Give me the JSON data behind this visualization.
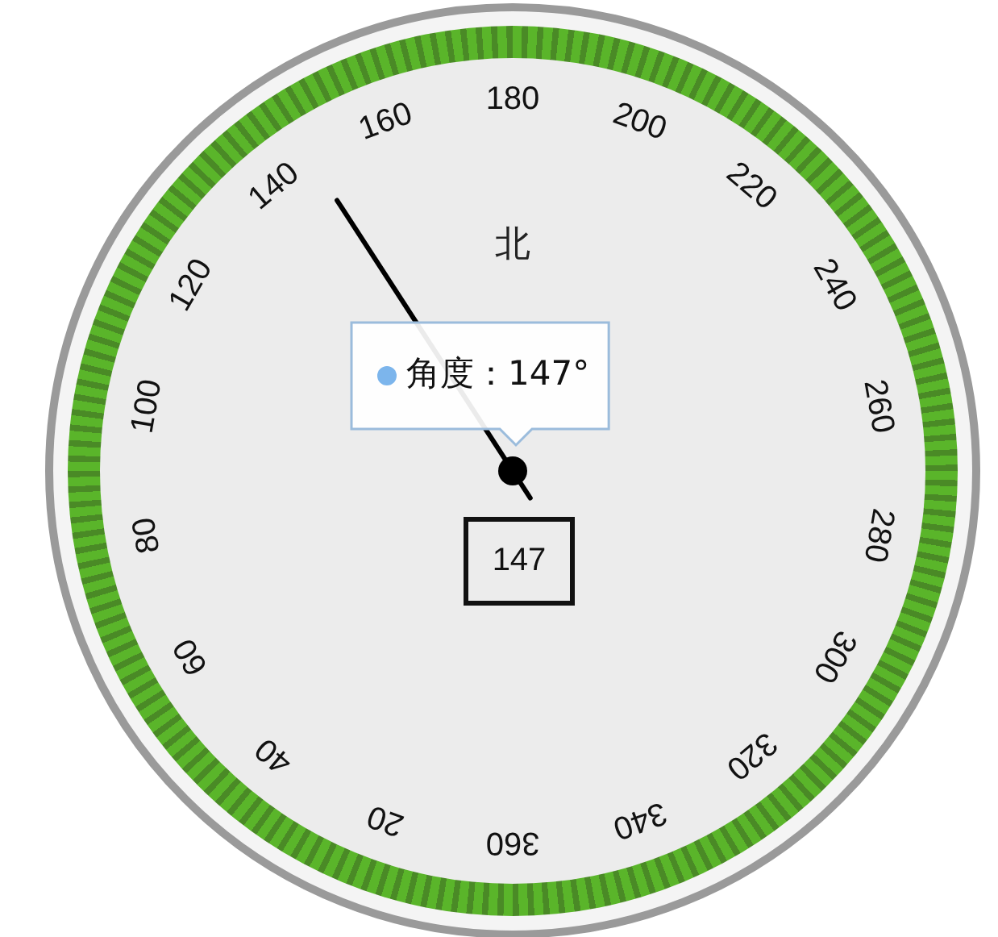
{
  "chart_data": {
    "type": "other",
    "title": "北",
    "values": [
      147
    ],
    "data_labels": true,
    "annotations": [
      "20",
      "40",
      "60",
      "80",
      "100",
      "120",
      "140",
      "160",
      "180",
      "200",
      "220",
      "240",
      "260",
      "280",
      "300",
      "320",
      "340",
      "360",
      "角度：147°"
    ]
  }
}
